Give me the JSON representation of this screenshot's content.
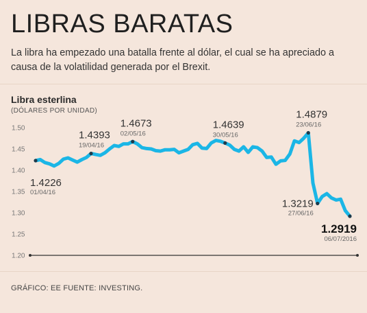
{
  "header": {
    "title": "LIBRAS BARATAS",
    "subtitle": "La libra ha empezado una batalla frente al dólar, el cual se ha apreciado a causa de la volatilidad generada por el Brexit."
  },
  "chart_data": {
    "type": "line",
    "title": "Libra esterlina",
    "ylabel": "(DÓLARES POR UNIDAD)",
    "ylim": [
      1.2,
      1.5
    ],
    "y_ticks": [
      "1.50",
      "1.45",
      "1.40",
      "1.35",
      "1.30",
      "1.25",
      "1.20"
    ],
    "line_color": "#1bb6e6",
    "series": [
      {
        "values": [
          1.4226,
          1.425,
          1.418,
          1.415,
          1.41,
          1.416,
          1.426,
          1.429,
          1.424,
          1.419,
          1.425,
          1.43,
          1.4393,
          1.437,
          1.435,
          1.441,
          1.45,
          1.458,
          1.456,
          1.462,
          1.462,
          1.4673,
          1.462,
          1.453,
          1.451,
          1.45,
          1.446,
          1.445,
          1.448,
          1.448,
          1.449,
          1.441,
          1.445,
          1.449,
          1.46,
          1.463,
          1.452,
          1.451,
          1.464,
          1.47,
          1.468,
          1.4639,
          1.459,
          1.449,
          1.445,
          1.455,
          1.442,
          1.455,
          1.453,
          1.445,
          1.43,
          1.431,
          1.414,
          1.422,
          1.423,
          1.438,
          1.469,
          1.465,
          1.475,
          1.4879,
          1.37,
          1.3219,
          1.338,
          1.345,
          1.335,
          1.33,
          1.332,
          1.305,
          1.2919
        ]
      }
    ],
    "annotations": [
      {
        "index": 0,
        "value": "1.4226",
        "date": "01/04/16",
        "position": "below",
        "bold": false
      },
      {
        "index": 12,
        "value": "1.4393",
        "date": "19/04/16",
        "position": "above",
        "bold": false
      },
      {
        "index": 21,
        "value": "1.4673",
        "date": "02/05/16",
        "position": "above",
        "bold": false
      },
      {
        "index": 41,
        "value": "1.4639",
        "date": "30/05/16",
        "position": "above",
        "bold": false
      },
      {
        "index": 59,
        "value": "1.4879",
        "date": "23/06/16",
        "position": "above",
        "bold": false
      },
      {
        "index": 61,
        "value": "1.3219",
        "date": "27/06/16",
        "position": "left",
        "bold": false
      },
      {
        "index": 68,
        "value": "1.2919",
        "date": "06/07/2016",
        "position": "below",
        "bold": true
      }
    ]
  },
  "footer": {
    "source": "GRÁFICO: EE FUENTE: INVESTING."
  }
}
